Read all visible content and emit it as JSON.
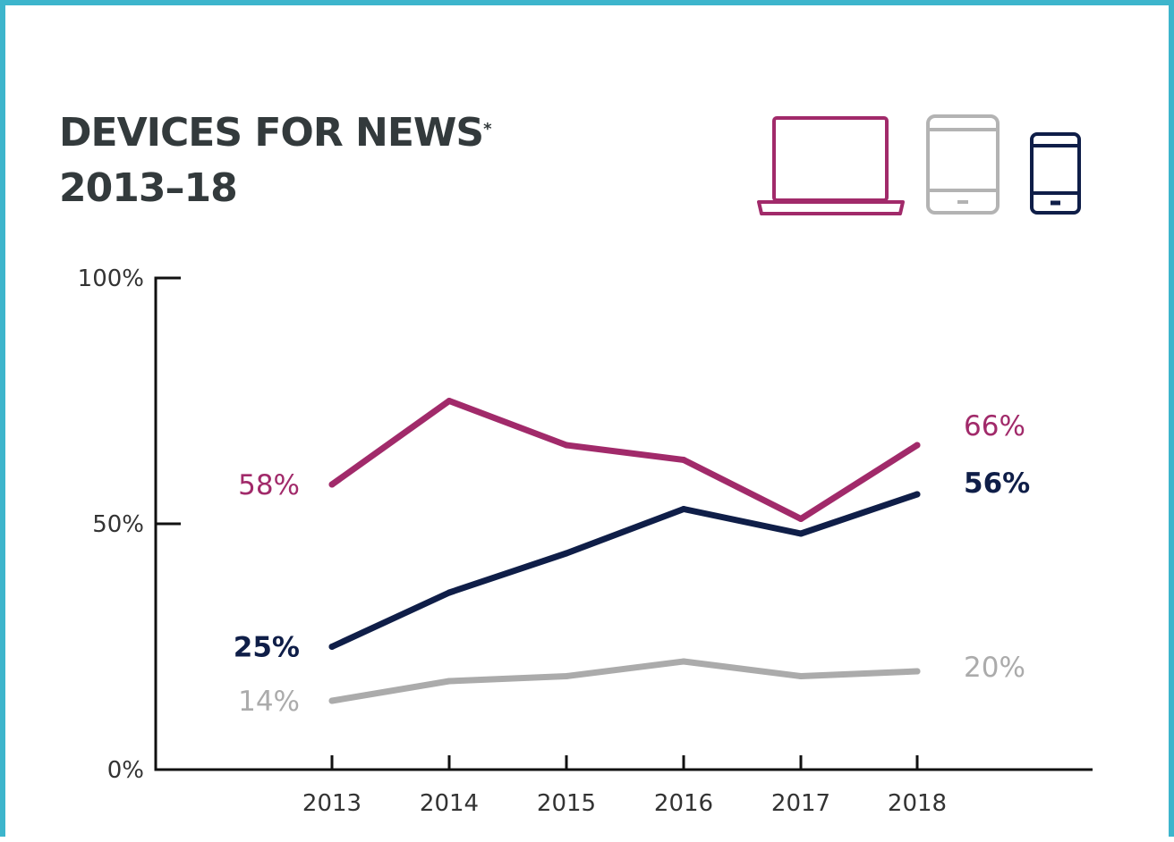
{
  "header": {
    "title_line1": "DEVICES FOR NEWS",
    "title_mark": "*",
    "title_line2": "2013–18"
  },
  "legend_icons": [
    {
      "name": "laptop-icon",
      "color": "#a12a6a"
    },
    {
      "name": "tablet-icon",
      "color": "#b3b3b3"
    },
    {
      "name": "smartphone-icon",
      "color": "#0f1e48"
    }
  ],
  "chart_data": {
    "type": "line",
    "title": "DEVICES FOR NEWS* 2013–18",
    "x": [
      "2013",
      "2014",
      "2015",
      "2016",
      "2017",
      "2018"
    ],
    "ylim": [
      0,
      100
    ],
    "y_ticks": [
      "0%",
      "50%",
      "100%"
    ],
    "grid": false,
    "series": [
      {
        "color": "#a12a6a",
        "values": [
          58,
          75,
          66,
          63,
          51,
          66
        ],
        "start_label": "58%",
        "end_label": "66%",
        "label_bold": false
      },
      {
        "color": "#0f1e48",
        "values": [
          25,
          36,
          44,
          53,
          48,
          56
        ],
        "start_label": "25%",
        "end_label": "56%",
        "label_bold": true
      },
      {
        "color": "#ababab",
        "values": [
          14,
          18,
          19,
          22,
          19,
          20
        ],
        "start_label": "14%",
        "end_label": "20%",
        "label_bold": false
      }
    ]
  }
}
